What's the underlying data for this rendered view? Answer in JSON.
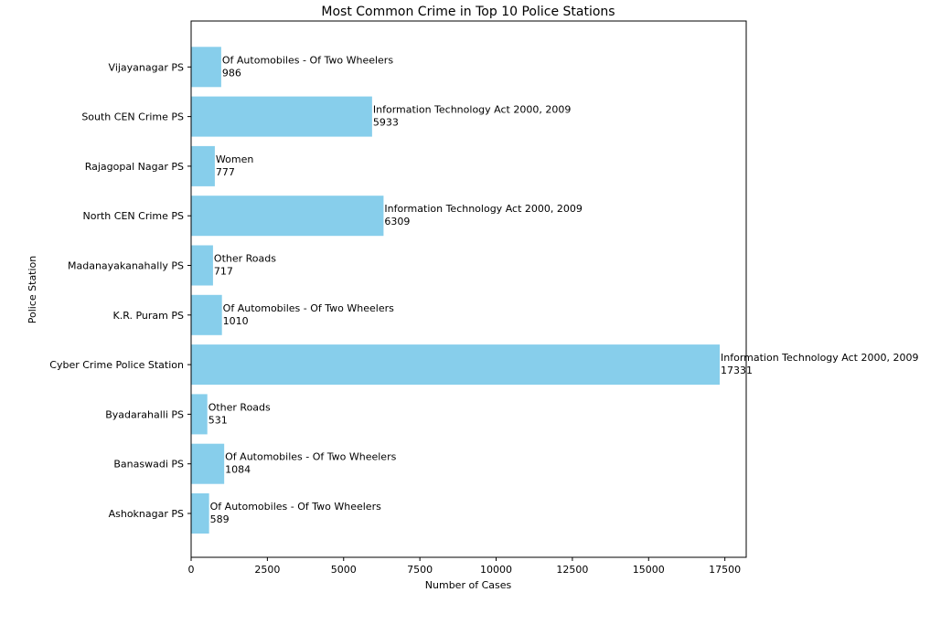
{
  "chart_data": {
    "type": "bar",
    "orientation": "horizontal",
    "title": "Most Common Crime in Top 10 Police Stations",
    "xlabel": "Number of Cases",
    "ylabel": "Police Station",
    "xlim": [
      0,
      18200
    ],
    "x_ticks": [
      0,
      2500,
      5000,
      7500,
      10000,
      12500,
      15000,
      17500
    ],
    "grid": false,
    "bar_color": "#87CEEB",
    "categories": [
      "Ashoknagar PS",
      "Banaswadi PS",
      "Byadarahalli PS",
      "Cyber Crime Police Station",
      "K.R. Puram PS",
      "Madanayakanahally PS",
      "North CEN Crime PS",
      "Rajagopal Nagar PS",
      "South CEN Crime PS",
      "Vijayanagar PS"
    ],
    "values": [
      589,
      1084,
      531,
      17331,
      1010,
      717,
      6309,
      777,
      5933,
      986
    ],
    "crime_labels": [
      "Of Automobiles - Of Two Wheelers",
      "Of Automobiles - Of Two Wheelers",
      "Other Roads",
      "Information Technology Act 2000, 2009",
      "Of Automobiles - Of Two Wheelers",
      "Other Roads",
      "Information Technology Act 2000, 2009",
      "Women",
      "Information Technology Act 2000, 2009",
      "Of Automobiles - Of Two Wheelers"
    ]
  }
}
